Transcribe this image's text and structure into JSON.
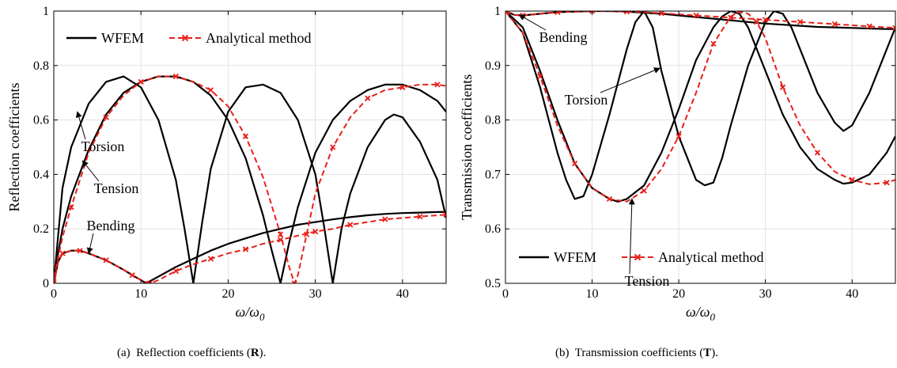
{
  "captions": {
    "a": {
      "label": "(a)",
      "text": "Reflection coefficients (",
      "symbol": "R",
      "end": ")."
    },
    "b": {
      "label": "(b)",
      "text": "Transmission coefficients (",
      "symbol": "T",
      "end": ")."
    }
  },
  "colors": {
    "wfem": "#000000",
    "analytical": "#e8201a"
  },
  "chart_data": [
    {
      "type": "line",
      "ylabel": "Reflection coefficients",
      "xlabel": "ω/ω0",
      "xlim": [
        0,
        45
      ],
      "ylim": [
        0,
        1
      ],
      "xticks": [
        0,
        10,
        20,
        30,
        40
      ],
      "yticks": [
        0,
        0.2,
        0.4,
        0.6,
        0.8,
        1
      ],
      "ytick_labels": [
        "0",
        "0.2",
        "0.4",
        "0.6",
        "0.8",
        "1"
      ],
      "grid": true,
      "legend": {
        "placement": "top-left",
        "entries": [
          "WFEM",
          "Analytical method"
        ]
      },
      "series": [
        {
          "name": "WFEM",
          "curve": "Torsion",
          "style": "solid",
          "x": [
            0,
            1,
            2,
            4,
            6,
            8,
            10,
            12,
            14,
            15,
            16,
            17,
            18,
            20,
            22,
            24,
            26,
            28,
            30,
            31,
            32,
            33,
            34,
            36,
            38,
            39,
            40,
            42,
            44,
            45
          ],
          "y": [
            0,
            0.35,
            0.5,
            0.66,
            0.74,
            0.76,
            0.72,
            0.6,
            0.38,
            0.2,
            0,
            0.22,
            0.42,
            0.63,
            0.72,
            0.73,
            0.7,
            0.6,
            0.4,
            0.21,
            0,
            0.2,
            0.33,
            0.5,
            0.6,
            0.62,
            0.61,
            0.52,
            0.38,
            0.24
          ]
        },
        {
          "name": "WFEM",
          "curve": "Tension",
          "style": "solid",
          "x": [
            0,
            1,
            2,
            4,
            6,
            8,
            10,
            12,
            14,
            16,
            18,
            20,
            22,
            24,
            25,
            26,
            27,
            28,
            30,
            32,
            34,
            36,
            38,
            40,
            42,
            44,
            45
          ],
          "y": [
            0.02,
            0.2,
            0.32,
            0.49,
            0.62,
            0.7,
            0.74,
            0.76,
            0.76,
            0.74,
            0.69,
            0.6,
            0.46,
            0.25,
            0.12,
            0,
            0.15,
            0.28,
            0.48,
            0.6,
            0.67,
            0.71,
            0.73,
            0.73,
            0.71,
            0.67,
            0.63
          ]
        },
        {
          "name": "WFEM",
          "curve": "Bending",
          "style": "solid",
          "x": [
            0,
            0.5,
            1,
            2,
            3,
            4,
            6,
            8,
            9,
            10,
            10.6,
            12,
            14,
            16,
            18,
            20,
            22,
            24,
            26,
            28,
            30,
            32,
            34,
            36,
            38,
            40,
            42,
            44,
            45
          ],
          "y": [
            0,
            0.08,
            0.11,
            0.12,
            0.12,
            0.11,
            0.085,
            0.05,
            0.03,
            0.012,
            0,
            0.025,
            0.06,
            0.09,
            0.12,
            0.145,
            0.165,
            0.185,
            0.2,
            0.215,
            0.225,
            0.235,
            0.243,
            0.25,
            0.255,
            0.258,
            0.26,
            0.262,
            0.262
          ]
        },
        {
          "name": "Analytical method",
          "curve": "Tension",
          "style": "dashed-x",
          "x": [
            0,
            1,
            2,
            4,
            6,
            8,
            10,
            12,
            14,
            16,
            18,
            20,
            22,
            24,
            26,
            27,
            27.6,
            28,
            29,
            30,
            32,
            34,
            36,
            38,
            40,
            42,
            44,
            45
          ],
          "y": [
            0.02,
            0.17,
            0.28,
            0.48,
            0.61,
            0.69,
            0.74,
            0.76,
            0.76,
            0.74,
            0.71,
            0.65,
            0.54,
            0.39,
            0.18,
            0.06,
            0,
            0.03,
            0.18,
            0.33,
            0.5,
            0.61,
            0.68,
            0.71,
            0.72,
            0.73,
            0.73,
            0.725
          ]
        },
        {
          "name": "Analytical method",
          "curve": "Bending",
          "style": "dashed-x",
          "x": [
            0,
            0.5,
            1,
            2,
            3,
            4,
            6,
            8,
            9,
            10,
            11,
            12,
            14,
            16,
            18,
            20,
            22,
            24,
            26,
            28,
            30,
            32,
            34,
            36,
            38,
            40,
            42,
            44,
            45
          ],
          "y": [
            0,
            0.08,
            0.11,
            0.12,
            0.12,
            0.11,
            0.085,
            0.05,
            0.03,
            0.012,
            0,
            0.012,
            0.045,
            0.07,
            0.09,
            0.11,
            0.125,
            0.145,
            0.16,
            0.175,
            0.19,
            0.2,
            0.215,
            0.225,
            0.235,
            0.24,
            0.245,
            0.25,
            0.252
          ]
        }
      ],
      "annotations": [
        {
          "text": "Torsion",
          "point": [
            2.7,
            0.63
          ]
        },
        {
          "text": "Tension",
          "point": [
            3.3,
            0.45
          ]
        },
        {
          "text": "Bending",
          "point": [
            4,
            0.11
          ]
        }
      ]
    },
    {
      "type": "line",
      "ylabel": "Transmission coefficients",
      "xlabel": "ω/ω0",
      "xlim": [
        0,
        45
      ],
      "ylim": [
        0.5,
        1
      ],
      "xticks": [
        0,
        10,
        20,
        30,
        40
      ],
      "yticks": [
        0.5,
        0.6,
        0.7,
        0.8,
        0.9,
        1
      ],
      "ytick_labels": [
        "0.5",
        "0.6",
        "0.7",
        "0.8",
        "0.9",
        "1"
      ],
      "grid": true,
      "legend": {
        "placement": "bottom-left",
        "entries": [
          "WFEM",
          "Analytical method"
        ]
      },
      "series": [
        {
          "name": "WFEM",
          "curve": "Torsion",
          "style": "solid",
          "x": [
            0,
            2,
            4,
            6,
            7,
            8,
            9,
            10,
            12,
            14,
            15,
            16,
            17,
            18,
            20,
            22,
            23,
            24,
            25,
            26,
            28,
            30,
            31,
            32,
            33,
            34,
            36,
            38,
            39,
            40,
            42,
            44,
            45
          ],
          "y": [
            1,
            0.96,
            0.86,
            0.74,
            0.69,
            0.655,
            0.66,
            0.7,
            0.81,
            0.93,
            0.98,
            1,
            0.97,
            0.89,
            0.77,
            0.69,
            0.68,
            0.685,
            0.73,
            0.79,
            0.9,
            0.98,
            1,
            0.995,
            0.97,
            0.93,
            0.85,
            0.795,
            0.78,
            0.79,
            0.85,
            0.93,
            0.97
          ]
        },
        {
          "name": "WFEM",
          "curve": "Tension",
          "style": "solid",
          "x": [
            0,
            2,
            4,
            6,
            8,
            10,
            12,
            13,
            14,
            16,
            18,
            20,
            22,
            24,
            25,
            26,
            27,
            28,
            30,
            32,
            34,
            36,
            38,
            39,
            40,
            42,
            44,
            45
          ],
          "y": [
            1,
            0.97,
            0.89,
            0.8,
            0.72,
            0.675,
            0.655,
            0.65,
            0.655,
            0.68,
            0.74,
            0.82,
            0.91,
            0.97,
            0.99,
            1,
            0.995,
            0.97,
            0.89,
            0.81,
            0.75,
            0.71,
            0.69,
            0.683,
            0.685,
            0.7,
            0.74,
            0.77
          ]
        },
        {
          "name": "WFEM",
          "curve": "Bending",
          "style": "solid",
          "x": [
            0,
            1,
            2,
            4,
            6,
            8,
            10,
            12,
            14,
            16,
            18,
            20,
            22,
            24,
            26,
            28,
            30,
            32,
            34,
            36,
            38,
            40,
            42,
            44,
            45
          ],
          "y": [
            1,
            0.993,
            0.992,
            0.995,
            0.998,
            0.999,
            1,
            1,
            0.999,
            0.997,
            0.995,
            0.992,
            0.989,
            0.986,
            0.983,
            0.98,
            0.977,
            0.975,
            0.973,
            0.971,
            0.97,
            0.969,
            0.968,
            0.967,
            0.967
          ]
        },
        {
          "name": "Analytical method",
          "curve": "Tension",
          "style": "dashed-x",
          "x": [
            0,
            2,
            4,
            6,
            8,
            10,
            12,
            14,
            16,
            18,
            20,
            22,
            24,
            26,
            27,
            28,
            29,
            30,
            32,
            34,
            36,
            38,
            40,
            42,
            44,
            45
          ],
          "y": [
            1,
            0.96,
            0.88,
            0.79,
            0.72,
            0.675,
            0.655,
            0.65,
            0.67,
            0.71,
            0.77,
            0.85,
            0.94,
            0.99,
            1,
            0.995,
            0.98,
            0.95,
            0.86,
            0.79,
            0.74,
            0.705,
            0.69,
            0.682,
            0.685,
            0.69
          ]
        },
        {
          "name": "Analytical method",
          "curve": "Bending",
          "style": "dashed-x",
          "x": [
            0,
            1,
            2,
            4,
            6,
            8,
            10,
            12,
            14,
            16,
            18,
            20,
            22,
            24,
            26,
            28,
            30,
            32,
            34,
            36,
            38,
            40,
            42,
            44,
            45
          ],
          "y": [
            1,
            0.993,
            0.992,
            0.995,
            0.998,
            0.999,
            1,
            1,
            0.999,
            0.998,
            0.996,
            0.994,
            0.992,
            0.99,
            0.988,
            0.986,
            0.984,
            0.982,
            0.98,
            0.978,
            0.976,
            0.974,
            0.972,
            0.97,
            0.969
          ]
        }
      ],
      "annotations": [
        {
          "text": "Bending",
          "point": [
            1.6,
            0.993
          ]
        },
        {
          "text": "Torsion",
          "point": [
            17.8,
            0.895
          ]
        },
        {
          "text": "Tension",
          "point": [
            14.6,
            0.655
          ]
        }
      ]
    }
  ]
}
